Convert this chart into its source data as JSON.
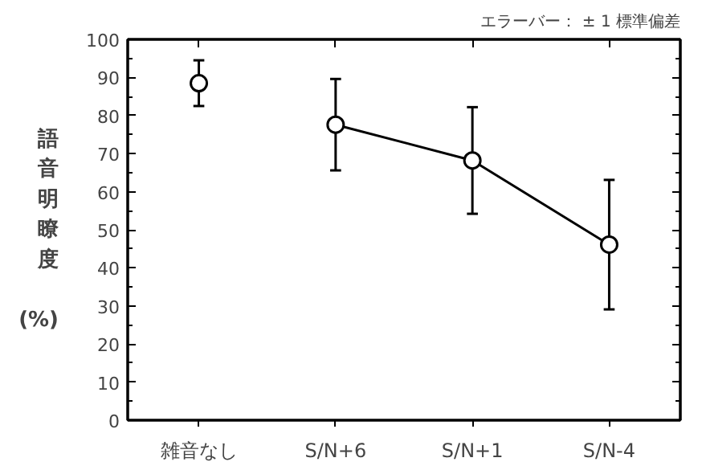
{
  "chart_data": {
    "type": "line",
    "categories": [
      "雑音なし",
      "S/N+6",
      "S/N+1",
      "S/N-4"
    ],
    "ylabel": "語音明瞭度 (%)",
    "annotations": [
      "エラーバー： ± 1 標準偏差"
    ],
    "ylim": [
      0,
      100
    ],
    "yticks": [
      0,
      10,
      20,
      30,
      40,
      50,
      60,
      70,
      80,
      90,
      100
    ],
    "grid": false,
    "marker": "circle",
    "line_style": "solid",
    "series": [
      {
        "type": "scatter",
        "color": "#000000",
        "values": [
          88.5,
          null,
          null,
          null
        ],
        "errors": [
          6,
          null,
          null,
          null
        ]
      },
      {
        "type": "line",
        "color": "#000000",
        "values": [
          null,
          77.6,
          68.2,
          46.1
        ],
        "errors": [
          null,
          12,
          14,
          17
        ]
      }
    ]
  }
}
